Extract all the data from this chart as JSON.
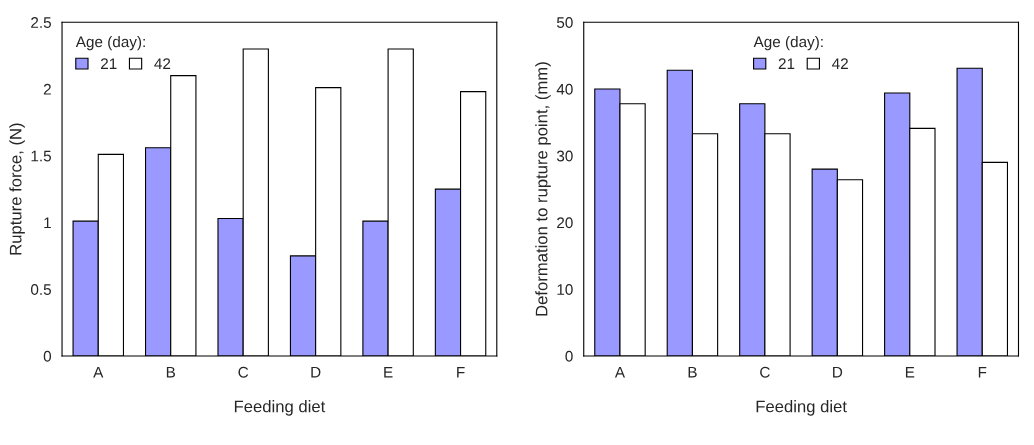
{
  "chart_data": [
    {
      "type": "bar",
      "xlabel": "Feeding diet",
      "ylabel": "Rupture force, (N)",
      "legend_title": "Age (day):",
      "legend": "top left",
      "grid": false,
      "categories": [
        "A",
        "B",
        "C",
        "D",
        "E",
        "F"
      ],
      "series": [
        {
          "name": "21",
          "color": "#9999ff",
          "values": [
            1.01,
            1.56,
            1.03,
            0.75,
            1.01,
            1.25
          ]
        },
        {
          "name": "42",
          "color": "#ffffff",
          "values": [
            1.51,
            2.1,
            2.3,
            2.01,
            2.3,
            1.98
          ]
        }
      ],
      "ylim": [
        0,
        2.5
      ],
      "yticks": [
        0,
        {
          "value": 0.5,
          "label": "0.5"
        },
        1,
        {
          "value": 1.5,
          "label": "1.5"
        },
        2,
        {
          "value": 2.5,
          "label": "2.5"
        }
      ]
    },
    {
      "type": "bar",
      "xlabel": "Feeding diet",
      "ylabel": "Deformation to rupture point, (mm)",
      "legend_title": "Age (day):",
      "legend": "top",
      "grid": false,
      "categories": [
        "A",
        "B",
        "C",
        "D",
        "E",
        "F"
      ],
      "series": [
        {
          "name": "21",
          "color": "#9999ff",
          "values": [
            40,
            42.8,
            37.8,
            28,
            39.4,
            43.1
          ]
        },
        {
          "name": "42",
          "color": "#ffffff",
          "values": [
            37.8,
            33.3,
            33.3,
            26.4,
            34.1,
            29
          ]
        }
      ],
      "ylim": [
        0,
        50
      ],
      "yticks": [
        0,
        10,
        20,
        30,
        40,
        50
      ]
    }
  ]
}
